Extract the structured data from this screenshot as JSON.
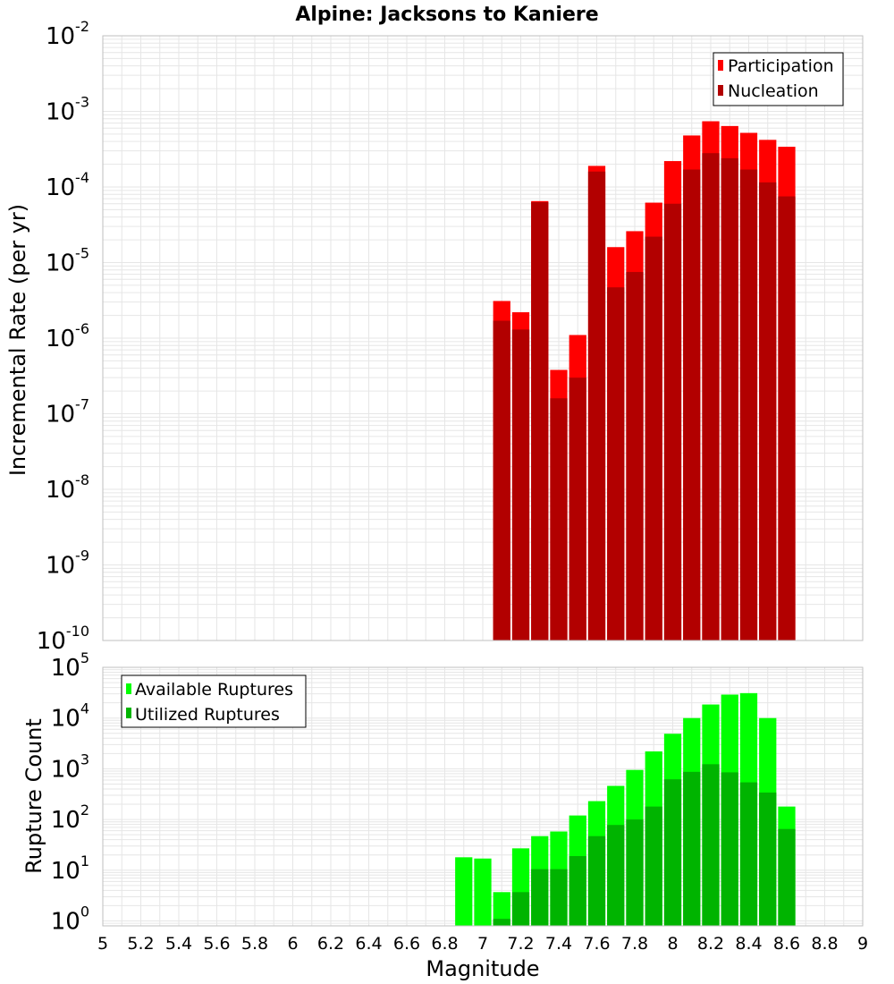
{
  "chart_data": [
    {
      "type": "bar",
      "title": "Alpine: Jacksons to Kaniere",
      "xlabel": "",
      "ylabel": "Incremental Rate (per yr)",
      "yscale": "log",
      "ylim": [
        1e-10,
        0.01
      ],
      "xlim": [
        5,
        9
      ],
      "grid": true,
      "legend_position": "top-right",
      "x": [
        7.1,
        7.2,
        7.3,
        7.4,
        7.5,
        7.6,
        7.7,
        7.8,
        7.9,
        8.0,
        8.1,
        8.2,
        8.3,
        8.4,
        8.5,
        8.6
      ],
      "series": [
        {
          "name": "Participation",
          "color": "#ff0000",
          "values": [
            3.1e-06,
            2.2e-06,
            6.5e-05,
            3.8e-07,
            1.1e-06,
            0.00019,
            1.6e-05,
            2.6e-05,
            6.2e-05,
            0.00022,
            0.00048,
            0.00074,
            0.00064,
            0.00052,
            0.00042,
            0.00034
          ]
        },
        {
          "name": "Nucleation",
          "color": "#b20000",
          "values": [
            1.7e-06,
            1.3e-06,
            6.3e-05,
            1.6e-07,
            3e-07,
            0.00016,
            4.7e-06,
            7.5e-06,
            2.2e-05,
            6e-05,
            0.00017,
            0.00028,
            0.00024,
            0.00017,
            0.000115,
            7.5e-05
          ]
        }
      ]
    },
    {
      "type": "bar",
      "title": "",
      "xlabel": "Magnitude",
      "ylabel": "Rupture Count",
      "yscale": "log",
      "ylim": [
        0.8,
        100000.0
      ],
      "xlim": [
        5,
        9
      ],
      "grid": true,
      "legend_position": "top-left",
      "x": [
        6.9,
        7.0,
        7.1,
        7.2,
        7.3,
        7.4,
        7.5,
        7.6,
        7.7,
        7.8,
        7.9,
        8.0,
        8.1,
        8.2,
        8.3,
        8.4,
        8.5,
        8.6
      ],
      "series": [
        {
          "name": "Available Ruptures",
          "color": "#00ff00",
          "values": [
            18,
            17,
            3.7,
            27,
            47,
            58,
            120,
            230,
            460,
            950,
            2200,
            4900,
            10000,
            18500,
            29000,
            31000,
            10000,
            180
          ]
        },
        {
          "name": "Utilized Ruptures",
          "color": "#00b400",
          "values": [
            0,
            0,
            1.1,
            3.7,
            10.5,
            10.5,
            19,
            47,
            78,
            100,
            180,
            620,
            870,
            1230,
            850,
            540,
            340,
            65
          ]
        }
      ]
    }
  ],
  "xticks": [
    "5",
    "5.2",
    "5.4",
    "5.6",
    "5.8",
    "6",
    "6.2",
    "6.4",
    "6.6",
    "6.8",
    "7",
    "7.2",
    "7.4",
    "7.6",
    "7.8",
    "8",
    "8.2",
    "8.4",
    "8.6",
    "8.8",
    "9"
  ],
  "top_yticks": [
    {
      "base": "10",
      "exp": "-10"
    },
    {
      "base": "10",
      "exp": "-9"
    },
    {
      "base": "10",
      "exp": "-8"
    },
    {
      "base": "10",
      "exp": "-7"
    },
    {
      "base": "10",
      "exp": "-6"
    },
    {
      "base": "10",
      "exp": "-5"
    },
    {
      "base": "10",
      "exp": "-4"
    },
    {
      "base": "10",
      "exp": "-3"
    },
    {
      "base": "10",
      "exp": "-2"
    }
  ],
  "bottom_yticks": [
    {
      "base": "10",
      "exp": "0"
    },
    {
      "base": "10",
      "exp": "1"
    },
    {
      "base": "10",
      "exp": "2"
    },
    {
      "base": "10",
      "exp": "3"
    },
    {
      "base": "10",
      "exp": "4"
    },
    {
      "base": "10",
      "exp": "5"
    }
  ],
  "colors": {
    "grid": "#e6e6e6",
    "axis_border": "#bfbfbf",
    "bar_separator": "#ffffff"
  }
}
